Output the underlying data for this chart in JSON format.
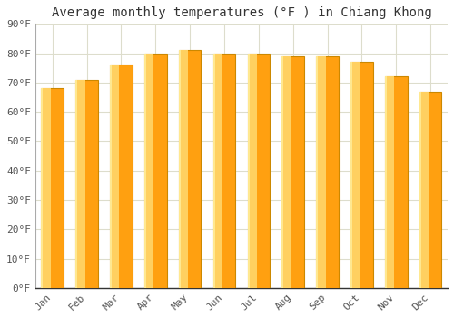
{
  "months": [
    "Jan",
    "Feb",
    "Mar",
    "Apr",
    "May",
    "Jun",
    "Jul",
    "Aug",
    "Sep",
    "Oct",
    "Nov",
    "Dec"
  ],
  "values": [
    68,
    71,
    76,
    80,
    81,
    80,
    80,
    79,
    79,
    77,
    72,
    67
  ],
  "bar_color_left": "#FFD060",
  "bar_color_right": "#FFA010",
  "bar_edge_color": "#CC8800",
  "title": "Average monthly temperatures (°F ) in Chiang Khong",
  "ylim": [
    0,
    90
  ],
  "yticks": [
    0,
    10,
    20,
    30,
    40,
    50,
    60,
    70,
    80,
    90
  ],
  "ytick_labels": [
    "0°F",
    "10°F",
    "20°F",
    "30°F",
    "40°F",
    "50°F",
    "60°F",
    "70°F",
    "80°F",
    "90°F"
  ],
  "background_color": "#ffffff",
  "grid_color": "#ddddcc",
  "title_fontsize": 10,
  "tick_fontsize": 8,
  "font_family": "monospace",
  "bar_width": 0.65
}
